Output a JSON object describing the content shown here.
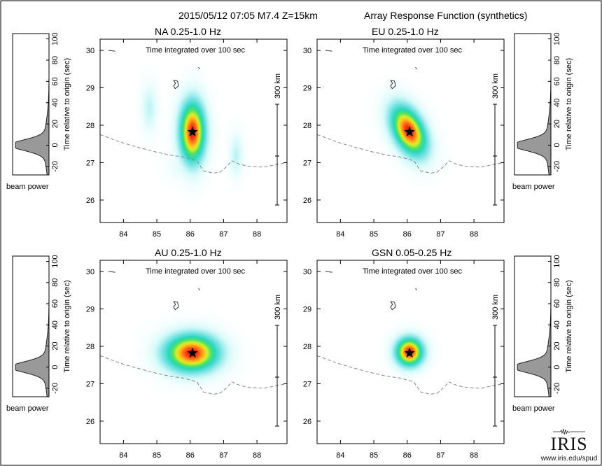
{
  "header": {
    "event": "2015/05/12 07:05  M7.4  Z=15km",
    "subtitle": "Array Response Function (synthetics)"
  },
  "common": {
    "integration_note": "Time integrated over 100 sec",
    "scale_label": "300 km",
    "beam_ylabel": "Time relative to origin (sec)",
    "beam_xlabel": "beam power"
  },
  "logo": {
    "word": "IRIS",
    "url": "www.iris.edu/spud"
  },
  "colors": {
    "star": "#000000",
    "boundary": "#888888",
    "frame": "#000000"
  },
  "chart_data": [
    {
      "type": "heatmap",
      "title": "NA  0.25-1.0 Hz",
      "xlim": [
        83.3,
        88.9
      ],
      "ylim": [
        25.4,
        30.3
      ],
      "xticks": [
        84,
        85,
        86,
        87,
        88
      ],
      "yticks": [
        26,
        27,
        28,
        29,
        30
      ],
      "epicenter": {
        "lon": 86.07,
        "lat": 27.82
      },
      "lobes": [
        {
          "lon": 86.07,
          "lat": 27.82,
          "sx": 0.26,
          "sy": 0.56,
          "amp": 1.0,
          "rot": 0
        },
        {
          "lon": 84.78,
          "lat": 28.45,
          "sx": 0.16,
          "sy": 0.42,
          "amp": 0.16,
          "rot": 0
        },
        {
          "lon": 87.38,
          "lat": 27.2,
          "sx": 0.14,
          "sy": 0.38,
          "amp": 0.16,
          "rot": 0
        },
        {
          "lon": 85.75,
          "lat": 26.9,
          "sx": 0.32,
          "sy": 0.25,
          "amp": 0.08,
          "rot": 0
        }
      ],
      "beam_power": {
        "ylim": [
          -28,
          105
        ],
        "yticks": [
          -20,
          0,
          20,
          40,
          60,
          80,
          100
        ],
        "peak_time": 0,
        "width": 5
      }
    },
    {
      "type": "heatmap",
      "title": "EU  0.25-1.0 Hz",
      "xlim": [
        83.3,
        88.9
      ],
      "ylim": [
        25.4,
        30.3
      ],
      "xticks": [
        84,
        85,
        86,
        87,
        88
      ],
      "yticks": [
        26,
        27,
        28,
        29,
        30
      ],
      "epicenter": {
        "lon": 86.07,
        "lat": 27.82
      },
      "lobes": [
        {
          "lon": 86.05,
          "lat": 27.85,
          "sx": 0.3,
          "sy": 0.5,
          "amp": 1.0,
          "rot": -0.55
        }
      ],
      "beam_power": {
        "ylim": [
          -28,
          105
        ],
        "yticks": [
          -20,
          0,
          20,
          40,
          60,
          80,
          100
        ],
        "peak_time": 0,
        "width": 5
      }
    },
    {
      "type": "heatmap",
      "title": "AU  0.25-1.0 Hz",
      "xlim": [
        83.3,
        88.9
      ],
      "ylim": [
        25.4,
        30.3
      ],
      "xticks": [
        84,
        85,
        86,
        87,
        88
      ],
      "yticks": [
        26,
        27,
        28,
        29,
        30
      ],
      "epicenter": {
        "lon": 86.07,
        "lat": 27.82
      },
      "lobes": [
        {
          "lon": 86.05,
          "lat": 27.82,
          "sx": 0.55,
          "sy": 0.34,
          "amp": 1.0,
          "rot": 0
        }
      ],
      "beam_power": {
        "ylim": [
          -28,
          105
        ],
        "yticks": [
          -20,
          0,
          20,
          40,
          60,
          80,
          100
        ],
        "peak_time": 0,
        "width": 5
      }
    },
    {
      "type": "heatmap",
      "title": "GSN  0.05-0.25 Hz",
      "xlim": [
        83.3,
        88.9
      ],
      "ylim": [
        25.4,
        30.3
      ],
      "xticks": [
        84,
        85,
        86,
        87,
        88
      ],
      "yticks": [
        26,
        27,
        28,
        29,
        30
      ],
      "epicenter": {
        "lon": 86.07,
        "lat": 27.82
      },
      "lobes": [
        {
          "lon": 86.07,
          "lat": 27.85,
          "sx": 0.28,
          "sy": 0.26,
          "amp": 1.0,
          "rot": 0
        }
      ],
      "beam_power": {
        "ylim": [
          -28,
          105
        ],
        "yticks": [
          -20,
          0,
          20,
          40,
          60,
          80,
          100
        ],
        "peak_time": 0,
        "width": 5
      }
    }
  ]
}
